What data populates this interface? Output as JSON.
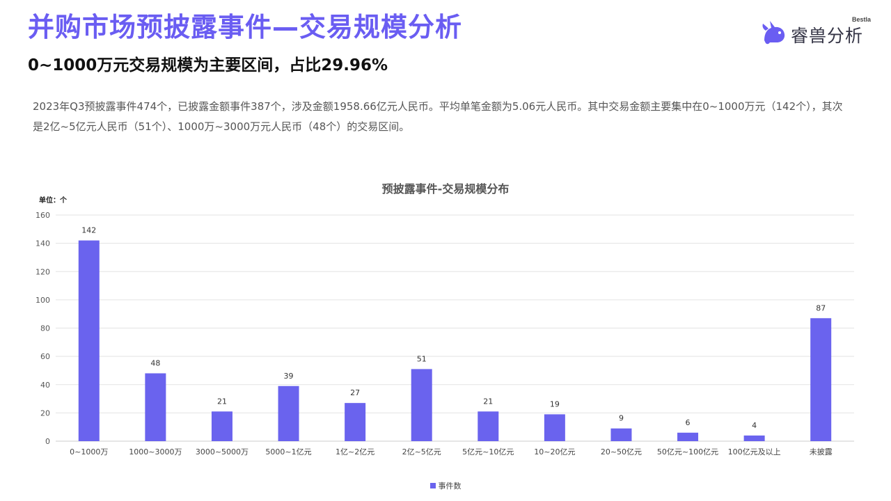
{
  "header": {
    "title": "并购市场预披露事件—交易规模分析",
    "subtitle": "0~1000万元交易规模为主要区间，占比29.96%",
    "summary": "2023年Q3预披露事件474个，已披露金额事件387个，涉及金额1958.66亿元人民币。平均单笔金额为5.06元人民币。其中交易金额主要集中在0~1000万元（142个），其次是2亿~5亿元人民币（51个）、1000万~3000万元人民币（48个）的交易区间。"
  },
  "logo": {
    "brand": "Bestla",
    "name": "睿兽分析",
    "icon": "unicorn-icon",
    "color": "#6a5df2"
  },
  "chart_data": {
    "type": "bar",
    "title": "预披露事件-交易规模分布",
    "unit_label": "单位：个",
    "categories": [
      "0~1000万",
      "1000~3000万",
      "3000~5000万",
      "5000~1亿元",
      "1亿~2亿元",
      "2亿~5亿元",
      "5亿元~10亿元",
      "10~20亿元",
      "20~50亿元",
      "50亿元~100亿元",
      "100亿元及以上",
      "未披露"
    ],
    "series": [
      {
        "name": "事件数",
        "values": [
          142,
          48,
          21,
          39,
          27,
          51,
          21,
          19,
          9,
          6,
          4,
          87
        ],
        "color": "#6a63ee"
      }
    ],
    "ylim": [
      0,
      160
    ],
    "yticks": [
      0,
      20,
      40,
      60,
      80,
      100,
      120,
      140,
      160
    ],
    "grid": true,
    "data_labels": true,
    "legend_position": "bottom"
  }
}
